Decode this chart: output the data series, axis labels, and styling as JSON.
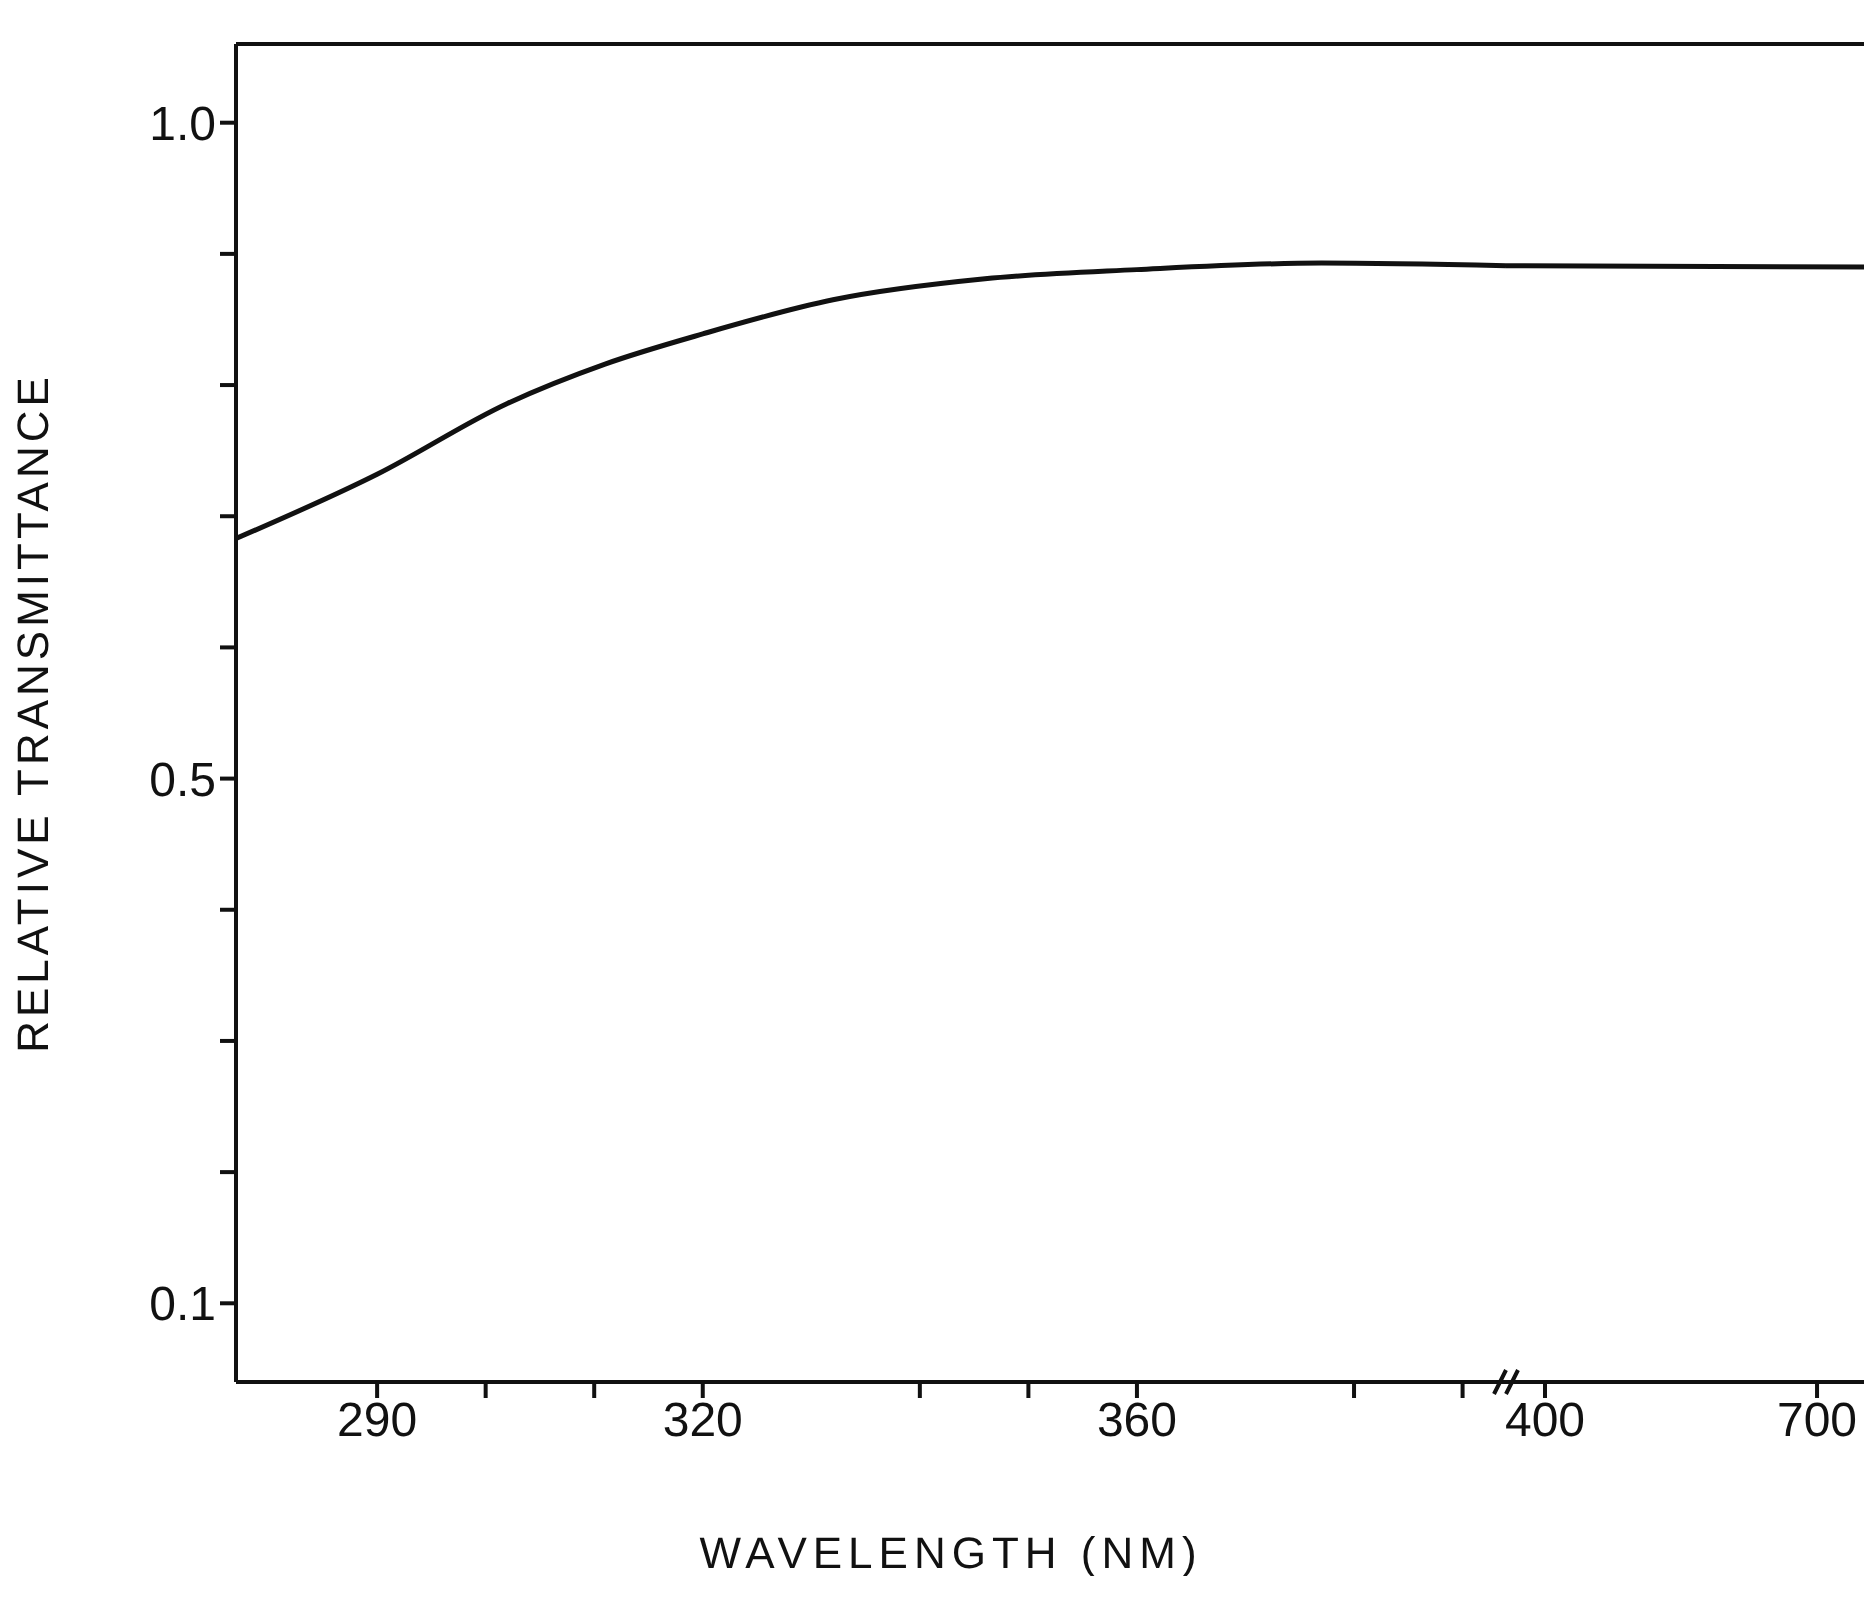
{
  "chart_data": [
    {
      "type": "line",
      "xlabel": "WAVELENGTH (NM)",
      "ylabel": "RELATIVE   TRANSMITTANCE",
      "xlim": [
        277,
        394
      ],
      "xticks": [
        290,
        {
          "value": 300,
          "label": null
        },
        {
          "value": 310,
          "label": null
        },
        320,
        {
          "value": 340,
          "label": null
        },
        {
          "value": 350,
          "label": null
        },
        360,
        {
          "value": 380,
          "label": null
        },
        {
          "value": 390,
          "label": null
        }
      ],
      "ylim": [
        0.04,
        1.06
      ],
      "yticks": [
        0.1,
        {
          "value": 0.2,
          "label": null
        },
        {
          "value": 0.3,
          "label": null
        },
        {
          "value": 0.4,
          "label": null
        },
        0.5,
        {
          "value": 0.6,
          "label": null
        },
        {
          "value": 0.7,
          "label": null
        },
        {
          "value": 0.8,
          "label": null
        },
        {
          "value": 0.9,
          "label": null
        },
        {
          "value": 1,
          "label": "1.0"
        }
      ],
      "grid": false,
      "series": [
        {
          "color": "#111111",
          "x": [
            277,
            290,
            302,
            311,
            320,
            332,
            346,
            360,
            377,
            394
          ],
          "values": [
            0.683,
            0.732,
            0.786,
            0.816,
            0.839,
            0.865,
            0.881,
            0.888,
            0.893,
            0.891
          ]
        }
      ]
    },
    {
      "type": "line",
      "tick_labels": "x",
      "xlim": [
        357,
        754
      ],
      "xticks": [
        400,
        700
      ],
      "ylim": [
        0.04,
        1.06
      ],
      "grid": false,
      "series": [
        {
          "color": "#111111",
          "x": [
            357,
            754
          ],
          "values": [
            0.891,
            0.89
          ]
        }
      ]
    }
  ]
}
